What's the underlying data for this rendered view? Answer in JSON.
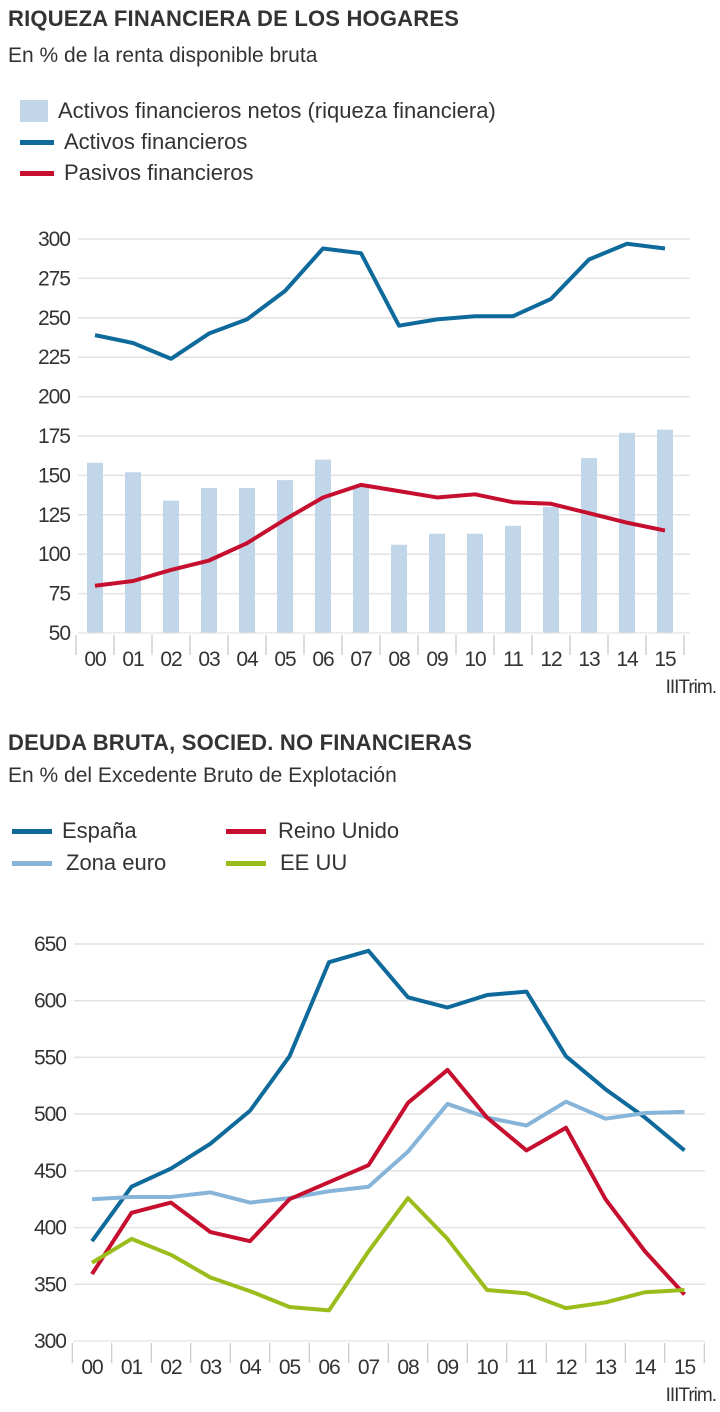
{
  "colors": {
    "activos": "#0f6a9c",
    "pasivos": "#c60f2f",
    "netos_bar": "#c2d6e9",
    "espana": "#0f6a9c",
    "zona_euro": "#87b5da",
    "reino_unido": "#c60f2f",
    "eeuu": "#9bbd1c",
    "grid": "#e2e2e2"
  },
  "chart_data": [
    {
      "type": "bar+line",
      "title": "RIQUEZA FINANCIERA DE LOS HOGARES",
      "subtitle": "En % de la renta disponible bruta",
      "categories": [
        "00",
        "01",
        "02",
        "03",
        "04",
        "05",
        "06",
        "07",
        "08",
        "09",
        "10",
        "11",
        "12",
        "13",
        "14",
        "15"
      ],
      "x_note": "IIITrim.",
      "yticks": [
        300,
        275,
        250,
        225,
        200,
        175,
        150,
        125,
        100,
        75,
        50
      ],
      "ylim": [
        50,
        300
      ],
      "grid": true,
      "legend_placement": "top-left",
      "series": [
        {
          "name": "Activos financieros netos (riqueza financiera)",
          "kind": "bar",
          "values": [
            158,
            152,
            134,
            142,
            142,
            147,
            160,
            143,
            106,
            113,
            113,
            118,
            130,
            161,
            177,
            179
          ]
        },
        {
          "name": "Activos financieros",
          "kind": "line",
          "values": [
            239,
            234,
            224,
            240,
            249,
            267,
            294,
            291,
            245,
            249,
            251,
            251,
            262,
            287,
            297,
            294
          ]
        },
        {
          "name": "Pasivos financieros",
          "kind": "line",
          "values": [
            80,
            83,
            90,
            96,
            107,
            122,
            136,
            144,
            140,
            136,
            138,
            133,
            132,
            126,
            120,
            115
          ]
        }
      ]
    },
    {
      "type": "line",
      "title": "DEUDA BRUTA, SOCIED. NO FINANCIERAS",
      "subtitle": "En % del Excedente Bruto de Explotación",
      "categories": [
        "00",
        "01",
        "02",
        "03",
        "04",
        "05",
        "06",
        "07",
        "08",
        "09",
        "10",
        "11",
        "12",
        "13",
        "14",
        "15"
      ],
      "x_note": "IIITrim.",
      "yticks": [
        650,
        600,
        550,
        500,
        450,
        400,
        350,
        300
      ],
      "ylim": [
        300,
        650
      ],
      "grid": true,
      "legend_placement": "top-left",
      "series": [
        {
          "name": "España",
          "values": [
            388,
            436,
            452,
            474,
            503,
            551,
            634,
            644,
            603,
            594,
            605,
            608,
            551,
            522,
            497,
            468
          ]
        },
        {
          "name": "Zona euro",
          "values": [
            425,
            427,
            427,
            431,
            422,
            426,
            432,
            436,
            467,
            509,
            497,
            490,
            511,
            496,
            501,
            502
          ]
        },
        {
          "name": "Reino Unido",
          "values": [
            359,
            413,
            422,
            396,
            388,
            425,
            440,
            455,
            510,
            539,
            497,
            468,
            488,
            425,
            379,
            341
          ]
        },
        {
          "name": "EE UU",
          "values": [
            369,
            390,
            376,
            356,
            344,
            330,
            327,
            379,
            426,
            390,
            345,
            342,
            329,
            334,
            343,
            345
          ]
        }
      ]
    }
  ]
}
